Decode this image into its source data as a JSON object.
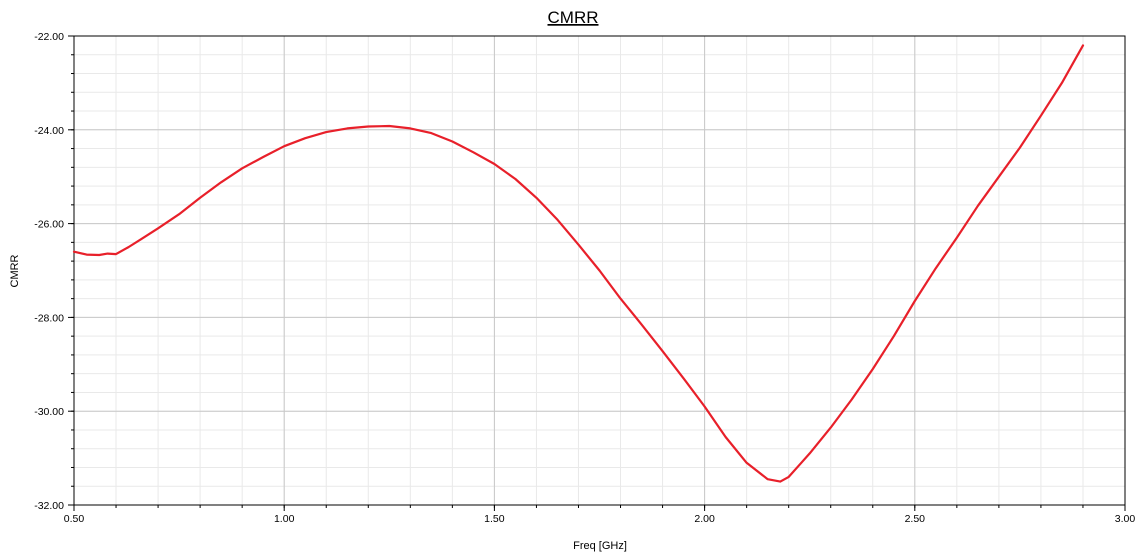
{
  "chart_data": {
    "type": "line",
    "title": "CMRR",
    "xlabel": "Freq [GHz]",
    "ylabel": "CMRR",
    "xlim": [
      0.5,
      3.0
    ],
    "ylim": [
      -32.0,
      -22.0
    ],
    "x_ticks": [
      0.5,
      1.0,
      1.5,
      2.0,
      2.5,
      3.0
    ],
    "x_tick_labels": [
      "0.50",
      "1.00",
      "1.50",
      "2.00",
      "2.50",
      "3.00"
    ],
    "y_ticks": [
      -22.0,
      -24.0,
      -26.0,
      -28.0,
      -30.0,
      -32.0
    ],
    "y_tick_labels": [
      "-22.00",
      "-24.00",
      "-26.00",
      "-28.00",
      "-30.00",
      "-32.00"
    ],
    "grid": true,
    "series_color": "#e8202a",
    "series": [
      {
        "x": [
          0.5,
          0.53,
          0.56,
          0.58,
          0.6,
          0.63,
          0.66,
          0.7,
          0.75,
          0.8,
          0.85,
          0.9,
          0.95,
          1.0,
          1.05,
          1.1,
          1.15,
          1.2,
          1.25,
          1.3,
          1.35,
          1.4,
          1.45,
          1.5,
          1.55,
          1.6,
          1.65,
          1.7,
          1.75,
          1.8,
          1.85,
          1.9,
          1.95,
          2.0,
          2.05,
          2.1,
          2.15,
          2.18,
          2.2,
          2.23,
          2.25,
          2.3,
          2.35,
          2.4,
          2.45,
          2.5,
          2.55,
          2.6,
          2.65,
          2.7,
          2.75,
          2.8,
          2.85,
          2.9
        ],
        "y": [
          -26.6,
          -26.66,
          -26.67,
          -26.64,
          -26.65,
          -26.5,
          -26.33,
          -26.1,
          -25.8,
          -25.45,
          -25.12,
          -24.82,
          -24.58,
          -24.35,
          -24.18,
          -24.05,
          -23.97,
          -23.93,
          -23.92,
          -23.97,
          -24.07,
          -24.25,
          -24.48,
          -24.73,
          -25.05,
          -25.45,
          -25.92,
          -26.45,
          -27.0,
          -27.6,
          -28.15,
          -28.72,
          -29.3,
          -29.9,
          -30.55,
          -31.1,
          -31.45,
          -31.5,
          -31.4,
          -31.1,
          -30.9,
          -30.35,
          -29.75,
          -29.1,
          -28.4,
          -27.65,
          -26.95,
          -26.3,
          -25.62,
          -25.0,
          -24.38,
          -23.7,
          -23.0,
          -22.2
        ]
      }
    ]
  }
}
